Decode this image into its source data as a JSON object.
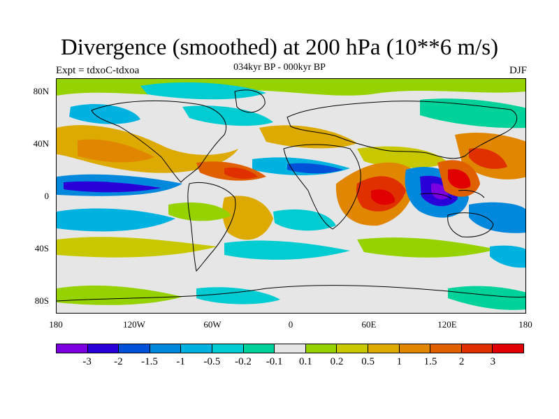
{
  "title": "Divergence (smoothed) at 200 hPa (10**6 m/s)",
  "subtitle": "034kyr BP - 000kyr BP",
  "experiment": "Expt = tdxoC-tdxoa",
  "season": "DJF",
  "lat_labels": [
    "80N",
    "40N",
    "0",
    "40S",
    "80S"
  ],
  "lon_labels": [
    "180",
    "120W",
    "60W",
    "0",
    "60E",
    "120E",
    "180"
  ],
  "colorbar": {
    "colors": [
      "#7a00e0",
      "#2a00d8",
      "#0050d8",
      "#0088dc",
      "#00b2e0",
      "#00ccd2",
      "#00d29a",
      "#e6e6e6",
      "#96d200",
      "#c8c800",
      "#dcaa00",
      "#e08600",
      "#e06000",
      "#e03000",
      "#e00000"
    ],
    "labels": [
      "-3",
      "-2",
      "-1.5",
      "-1",
      "-0.5",
      "-0.2",
      "-0.1",
      "0.1",
      "0.2",
      "0.5",
      "1",
      "1.5",
      "2",
      "3"
    ]
  }
}
